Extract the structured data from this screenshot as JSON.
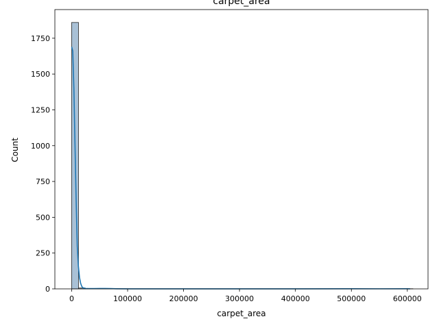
{
  "chart_data": {
    "type": "histogram",
    "title": "carpet_area",
    "xlabel": "carpet_area",
    "ylabel": "Count",
    "xlim": [
      -30000,
      637000
    ],
    "ylim": [
      0,
      1950
    ],
    "x_ticks": [
      0,
      100000,
      200000,
      300000,
      400000,
      500000,
      600000
    ],
    "y_ticks": [
      0,
      250,
      500,
      750,
      1000,
      1250,
      1500,
      1750
    ],
    "grid": false,
    "legend": "none",
    "bar_color": "#a9c1d6",
    "bar_edge_color": "#1f1f1f",
    "kde_color": "#1f77b4",
    "bin_width": 12200,
    "bins": [
      {
        "x0": 0,
        "x1": 12200,
        "count": 1860
      },
      {
        "x0": 12200,
        "x1": 24400,
        "count": 6
      },
      {
        "x0": 24400,
        "x1": 36600,
        "count": 2
      },
      {
        "x0": 36600,
        "x1": 48800,
        "count": 1
      },
      {
        "x0": 48800,
        "x1": 61000,
        "count": 2
      },
      {
        "x0": 61000,
        "x1": 73200,
        "count": 1
      },
      {
        "x0": 85400,
        "x1": 97600,
        "count": 1
      },
      {
        "x0": 500000,
        "x1": 512200,
        "count": 1
      },
      {
        "x0": 597800,
        "x1": 610000,
        "count": 1
      }
    ],
    "kde": {
      "x": [
        0,
        2000,
        4000,
        6000,
        8000,
        10000,
        12000,
        14000,
        16000,
        18000,
        20000,
        25000,
        30000,
        40000,
        50000,
        60000,
        70000,
        80000,
        100000,
        150000,
        200000,
        300000,
        400000,
        500000,
        550000,
        600000,
        605000
      ],
      "y": [
        1690,
        1660,
        1400,
        1000,
        620,
        300,
        160,
        80,
        40,
        18,
        8,
        3,
        2,
        2,
        3,
        3,
        2,
        1,
        0.5,
        0.3,
        0.2,
        0.2,
        0.3,
        0.8,
        0.6,
        0.8,
        0.4
      ]
    }
  }
}
